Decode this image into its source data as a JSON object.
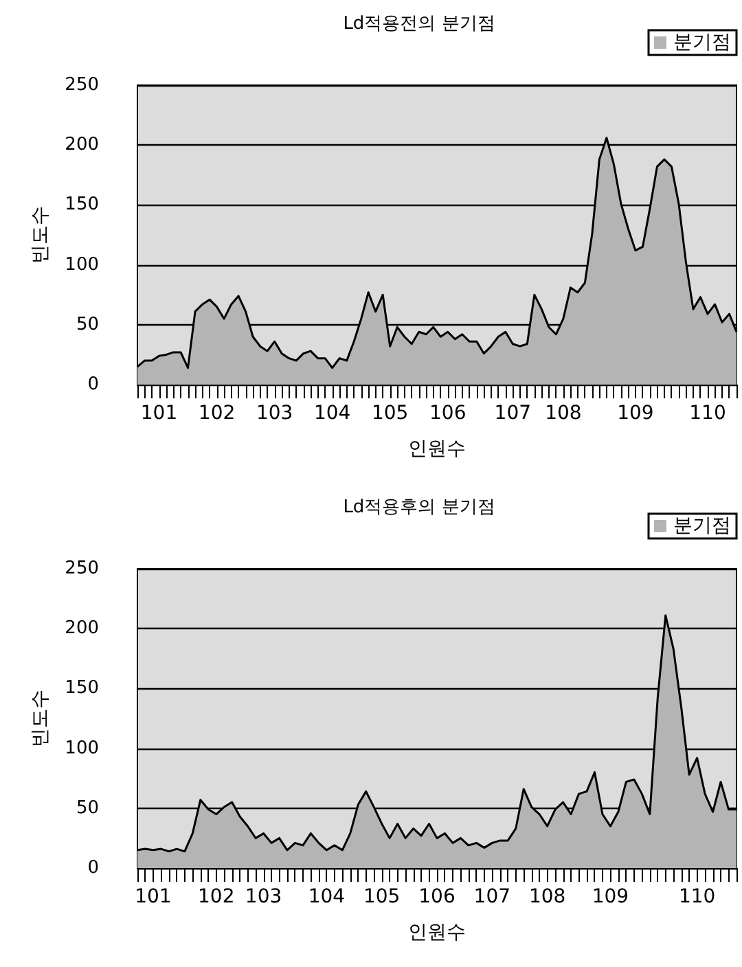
{
  "chart_data": [
    {
      "type": "area",
      "title": "Ld적용전의 분기점",
      "xlabel": "인원수",
      "ylabel": "빈도수",
      "categories": [
        null,
        null,
        null,
        "101",
        null,
        null,
        null,
        null,
        null,
        null,
        null,
        "102",
        null,
        null,
        null,
        null,
        null,
        null,
        null,
        "103",
        null,
        null,
        null,
        null,
        null,
        null,
        null,
        "104",
        null,
        null,
        null,
        null,
        null,
        null,
        null,
        "105",
        null,
        null,
        null,
        null,
        null,
        null,
        null,
        "106",
        null,
        null,
        null,
        null,
        null,
        null,
        null,
        null,
        "107",
        null,
        null,
        null,
        null,
        null,
        null,
        "108",
        null,
        null,
        null,
        null,
        null,
        null,
        null,
        null,
        null,
        "109",
        null,
        null,
        null,
        null,
        null,
        null,
        null,
        null,
        null,
        "110",
        null,
        null,
        null,
        null
      ],
      "series": [
        {
          "name": "분기점",
          "color": "#b4b4b4",
          "values": [
            15,
            20,
            20,
            24,
            25,
            27,
            27,
            14,
            61,
            67,
            71,
            65,
            55,
            67,
            74,
            61,
            40,
            32,
            28,
            36,
            26,
            22,
            20,
            26,
            28,
            22,
            22,
            14,
            22,
            20,
            36,
            55,
            77,
            61,
            75,
            32,
            48,
            40,
            34,
            44,
            42,
            48,
            40,
            44,
            38,
            42,
            36,
            36,
            26,
            32,
            40,
            44,
            34,
            32,
            34,
            75,
            63,
            48,
            42,
            55,
            81,
            77,
            85,
            126,
            188,
            206,
            184,
            151,
            130,
            112,
            115,
            147,
            182,
            188,
            182,
            151,
            102,
            63,
            73,
            59,
            67,
            52,
            59,
            44
          ]
        }
      ],
      "ylim": [
        0,
        250
      ],
      "yticks": [
        0,
        50,
        100,
        150,
        200,
        250
      ],
      "grid": "y",
      "legend": "top right"
    },
    {
      "type": "area",
      "title": "Ld적용후의 분기점",
      "xlabel": "인원수",
      "ylabel": "빈도수",
      "categories": [
        null,
        null,
        "101",
        null,
        null,
        null,
        null,
        null,
        null,
        null,
        "102",
        null,
        null,
        null,
        null,
        null,
        "103",
        null,
        null,
        null,
        null,
        null,
        null,
        null,
        "104",
        null,
        null,
        null,
        null,
        null,
        null,
        "105",
        null,
        null,
        null,
        null,
        null,
        null,
        "106",
        null,
        null,
        null,
        null,
        null,
        null,
        "107",
        null,
        null,
        null,
        null,
        null,
        null,
        "108",
        null,
        null,
        null,
        null,
        null,
        null,
        null,
        "109",
        null,
        null,
        null,
        null,
        null,
        null,
        null,
        null,
        null,
        null,
        "110",
        null,
        null,
        null,
        null,
        null
      ],
      "series": [
        {
          "name": "분기점",
          "color": "#b4b4b4",
          "values": [
            15,
            16,
            15,
            16,
            14,
            16,
            14,
            29,
            57,
            49,
            45,
            51,
            55,
            43,
            35,
            25,
            29,
            21,
            25,
            15,
            21,
            19,
            29,
            21,
            15,
            19,
            15,
            29,
            53,
            64,
            51,
            37,
            25,
            37,
            25,
            33,
            27,
            37,
            25,
            29,
            21,
            25,
            19,
            21,
            17,
            21,
            23,
            23,
            33,
            66,
            51,
            45,
            35,
            49,
            55,
            45,
            62,
            64,
            80,
            45,
            35,
            47,
            72,
            74,
            62,
            45,
            142,
            211,
            183,
            134,
            78,
            92,
            62,
            47,
            72,
            49,
            49
          ]
        }
      ],
      "ylim": [
        0,
        250
      ],
      "yticks": [
        0,
        50,
        100,
        150,
        200,
        250
      ],
      "grid": "y",
      "legend": "top right"
    }
  ]
}
